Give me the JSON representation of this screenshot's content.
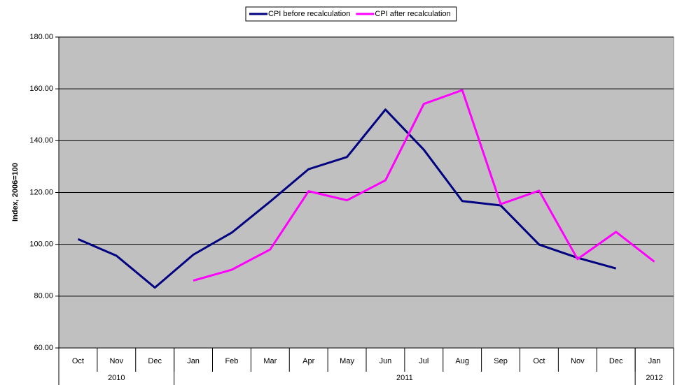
{
  "chart_data": {
    "type": "line",
    "y_label": "Index, 2006=100",
    "categories": [
      "Oct",
      "Nov",
      "Dec",
      "Jan",
      "Feb",
      "Mar",
      "Apr",
      "May",
      "Jun",
      "Jul",
      "Aug",
      "Sep",
      "Oct",
      "Nov",
      "Dec",
      "Jan"
    ],
    "groups": [
      {
        "label": "2010",
        "size": 3
      },
      {
        "label": "2011",
        "size": 12
      },
      {
        "label": "2012",
        "size": 1
      }
    ],
    "series": [
      {
        "name": "CPI before recalculation",
        "color": "#000080",
        "values": [
          102,
          95.6,
          83.3,
          96,
          104.5,
          116.5,
          129,
          133.7,
          152,
          136.5,
          116.7,
          115,
          99.9,
          94.8,
          90.7,
          null
        ]
      },
      {
        "name": "CPI after recalculation",
        "color": "#ff00ff",
        "values": [
          null,
          null,
          null,
          86,
          90.2,
          98,
          120.5,
          117,
          124.7,
          154.2,
          159.5,
          115.5,
          120.7,
          94.3,
          104.8,
          93.3
        ]
      }
    ],
    "ylim": [
      60,
      180
    ],
    "yticks": [
      {
        "value": 60,
        "label": "60.00"
      },
      {
        "value": 80,
        "label": "80.00"
      },
      {
        "value": 100,
        "label": "100.00"
      },
      {
        "value": 120,
        "label": "120.00"
      },
      {
        "value": 140,
        "label": "140.00"
      },
      {
        "value": 160,
        "label": "160.00"
      },
      {
        "value": 180,
        "label": "180.00"
      }
    ],
    "grid": true,
    "plot_background": "#c0c0c0",
    "legend": "top"
  }
}
